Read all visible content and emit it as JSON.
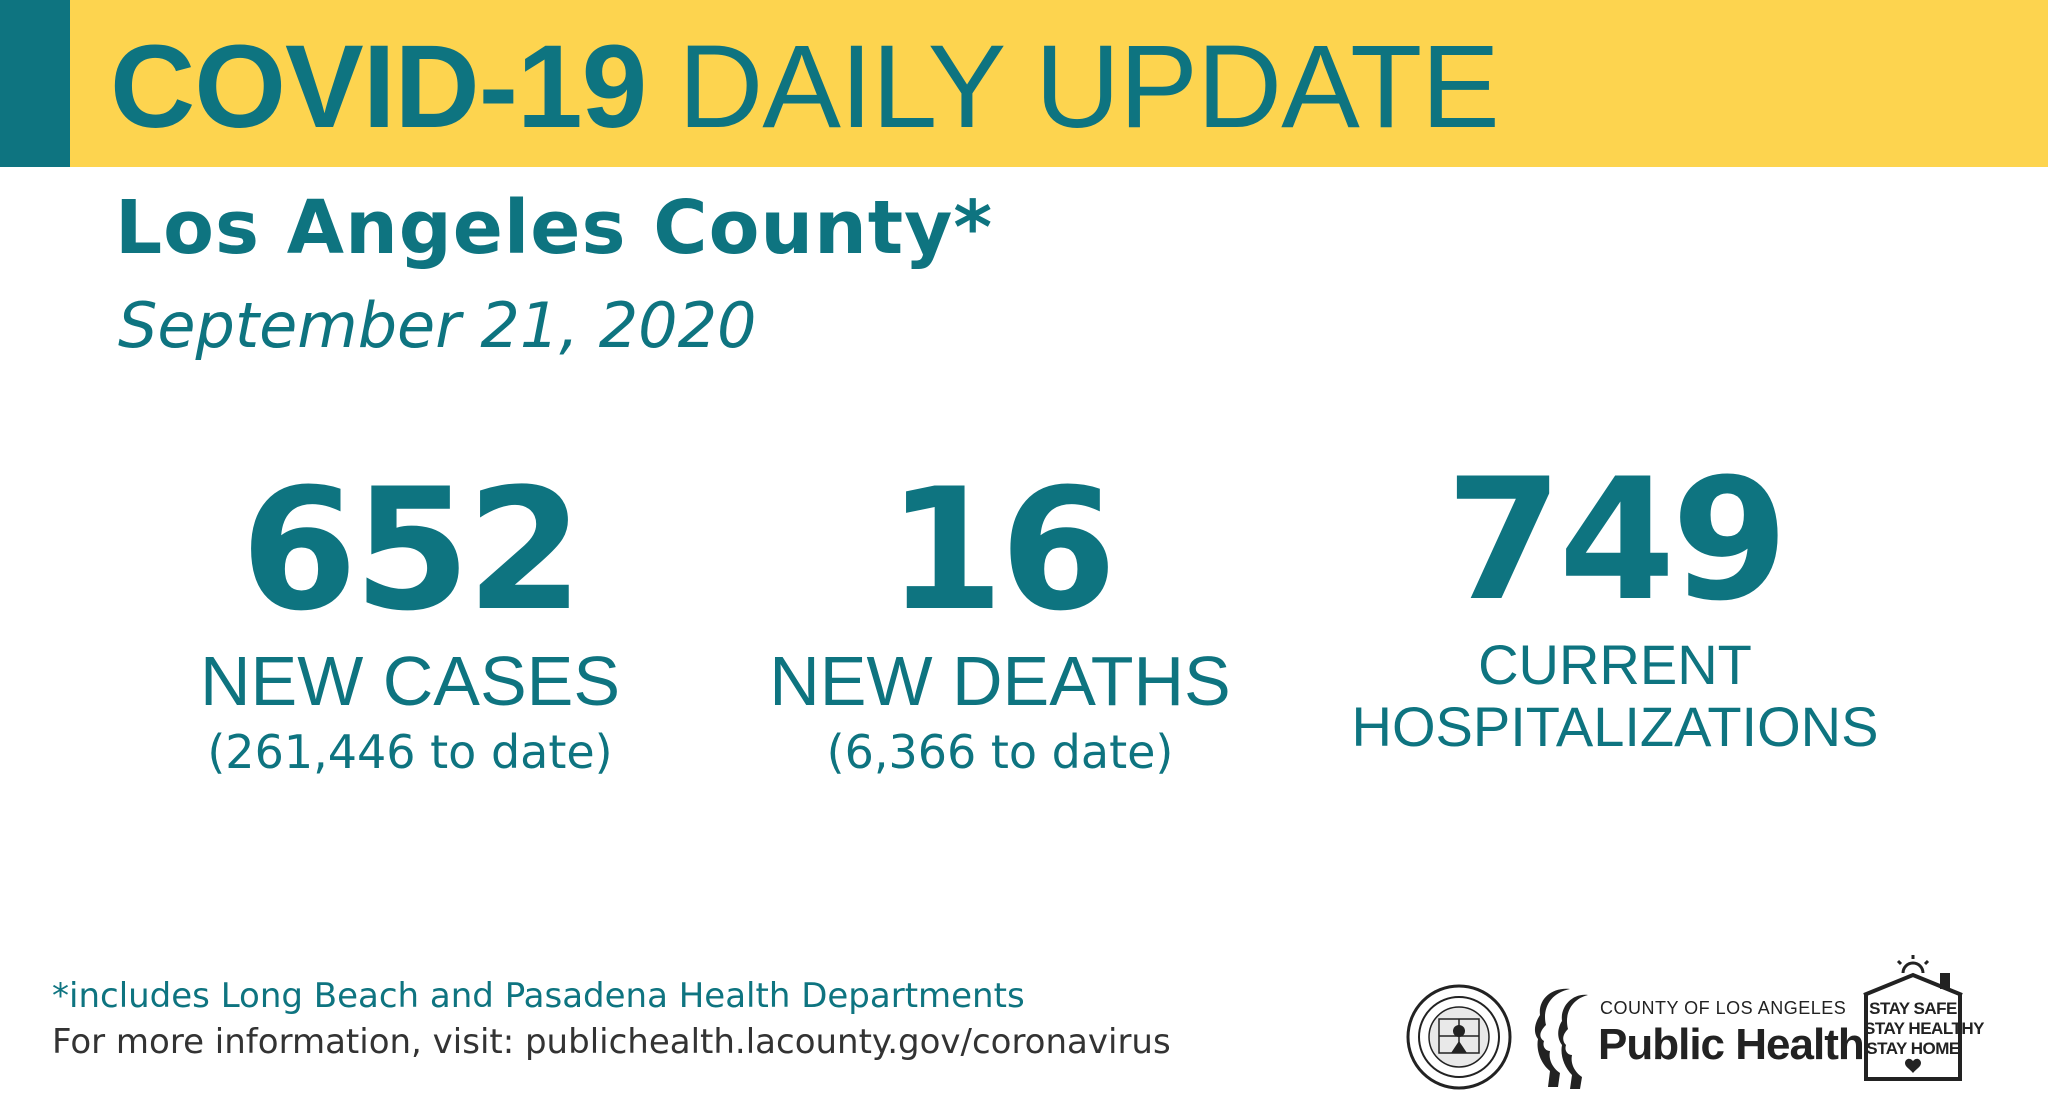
{
  "header": {
    "title_bold": "COVID-19",
    "title_light": "DAILY UPDATE",
    "subtitle": "Los Angeles County*",
    "date": "September 21, 2020"
  },
  "stats": {
    "cases": {
      "number": "652",
      "label": "NEW CASES",
      "to_date": "(261,446 to date)"
    },
    "deaths": {
      "number": "16",
      "label": "NEW DEATHS",
      "to_date": "(6,366 to date)"
    },
    "hospitalizations": {
      "number": "749",
      "label_line1": "CURRENT",
      "label_line2": "HOSPITALIZATIONS"
    }
  },
  "footer": {
    "footnote": "*includes Long Beach and Pasadena Health Departments",
    "more_info": "For more information, visit: publichealth.lacounty.gov/coronavirus"
  },
  "logos": {
    "seal_icon": "county-seal-icon",
    "public_health": {
      "top": "COUNTY OF LOS ANGELES",
      "main": "Public Health"
    },
    "stay_safe": {
      "line1": "STAY SAFE",
      "line2": "STAY HEALTHY",
      "line3": "STAY HOME"
    }
  },
  "colors": {
    "teal": "#0e7480",
    "yellow": "#fdd44f",
    "text_dark": "#333333"
  }
}
